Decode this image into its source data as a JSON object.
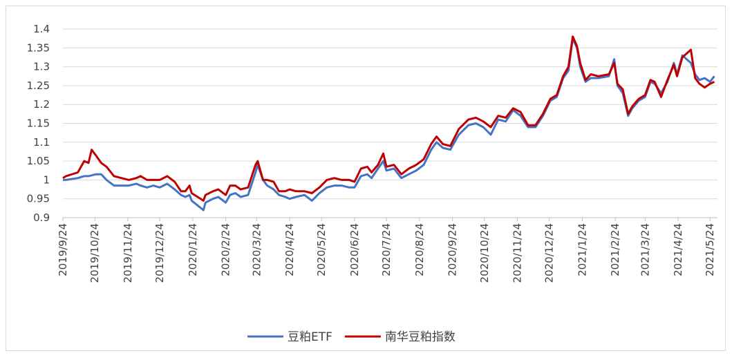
{
  "chart_data": {
    "type": "line",
    "x": [
      "2019/9/24",
      "2019/9/27",
      "2019/10/8",
      "2019/10/14",
      "2019/10/18",
      "2019/10/21",
      "2019/10/25",
      "2019/10/30",
      "2019/11/4",
      "2019/11/11",
      "2019/11/18",
      "2019/11/25",
      "2019/12/2",
      "2019/12/6",
      "2019/12/12",
      "2019/12/18",
      "2019/12/24",
      "2019/12/31",
      "2020/1/7",
      "2020/1/13",
      "2020/1/17",
      "2020/1/21",
      "2020/1/23",
      "2020/2/3",
      "2020/2/5",
      "2020/2/12",
      "2020/2/17",
      "2020/2/24",
      "2020/2/28",
      "2020/3/4",
      "2020/3/9",
      "2020/3/16",
      "2020/3/23",
      "2020/3/25",
      "2020/3/30",
      "2020/4/3",
      "2020/4/9",
      "2020/4/14",
      "2020/4/20",
      "2020/4/24",
      "2020/4/30",
      "2020/5/8",
      "2020/5/15",
      "2020/5/22",
      "2020/5/29",
      "2020/6/5",
      "2020/6/12",
      "2020/6/19",
      "2020/6/24",
      "2020/6/30",
      "2020/7/6",
      "2020/7/10",
      "2020/7/16",
      "2020/7/21",
      "2020/7/24",
      "2020/7/31",
      "2020/8/7",
      "2020/8/14",
      "2020/8/21",
      "2020/8/28",
      "2020/9/4",
      "2020/9/9",
      "2020/9/15",
      "2020/9/22",
      "2020/9/30",
      "2020/10/9",
      "2020/10/16",
      "2020/10/23",
      "2020/10/30",
      "2020/11/6",
      "2020/11/13",
      "2020/11/20",
      "2020/11/27",
      "2020/12/4",
      "2020/12/11",
      "2020/12/18",
      "2020/12/25",
      "2020/12/31",
      "2021/1/6",
      "2021/1/11",
      "2021/1/15",
      "2021/1/19",
      "2021/1/22",
      "2021/1/27",
      "2021/2/1",
      "2021/2/8",
      "2021/2/18",
      "2021/2/23",
      "2021/2/26",
      "2021/3/3",
      "2021/3/8",
      "2021/3/12",
      "2021/3/18",
      "2021/3/24",
      "2021/3/29",
      "2021/4/2",
      "2021/4/8",
      "2021/4/14",
      "2021/4/20",
      "2021/4/23",
      "2021/4/28",
      "2021/5/6",
      "2021/5/10",
      "2021/5/14",
      "2021/5/19",
      "2021/5/24",
      "2021/5/28"
    ],
    "series": [
      {
        "name": "豆粕ETF",
        "color": "#4472c4",
        "values": [
          1.0,
          1.0,
          1.005,
          1.01,
          1.01,
          1.012,
          1.015,
          1.015,
          1.0,
          0.985,
          0.985,
          0.985,
          0.99,
          0.985,
          0.98,
          0.985,
          0.98,
          0.99,
          0.975,
          0.96,
          0.955,
          0.96,
          0.945,
          0.92,
          0.94,
          0.95,
          0.955,
          0.94,
          0.96,
          0.965,
          0.955,
          0.96,
          1.02,
          1.04,
          1.0,
          0.985,
          0.975,
          0.96,
          0.955,
          0.95,
          0.955,
          0.96,
          0.945,
          0.965,
          0.98,
          0.985,
          0.985,
          0.98,
          0.98,
          1.01,
          1.015,
          1.005,
          1.03,
          1.05,
          1.025,
          1.03,
          1.005,
          1.015,
          1.025,
          1.04,
          1.08,
          1.1,
          1.085,
          1.08,
          1.12,
          1.145,
          1.15,
          1.14,
          1.12,
          1.16,
          1.155,
          1.185,
          1.17,
          1.14,
          1.14,
          1.17,
          1.21,
          1.22,
          1.27,
          1.29,
          1.375,
          1.35,
          1.3,
          1.26,
          1.27,
          1.27,
          1.275,
          1.32,
          1.25,
          1.23,
          1.17,
          1.19,
          1.21,
          1.22,
          1.26,
          1.255,
          1.23,
          1.26,
          1.31,
          1.28,
          1.33,
          1.31,
          1.28,
          1.265,
          1.27,
          1.26,
          1.275
        ]
      },
      {
        "name": "南华豆粕指数",
        "color": "#c00000",
        "values": [
          1.005,
          1.01,
          1.02,
          1.05,
          1.045,
          1.08,
          1.065,
          1.045,
          1.035,
          1.01,
          1.005,
          1.0,
          1.005,
          1.01,
          1.0,
          1.0,
          1.0,
          1.01,
          0.995,
          0.97,
          0.97,
          0.985,
          0.965,
          0.945,
          0.96,
          0.97,
          0.975,
          0.96,
          0.985,
          0.985,
          0.975,
          0.98,
          1.04,
          1.05,
          1.0,
          1.0,
          0.995,
          0.97,
          0.97,
          0.975,
          0.97,
          0.97,
          0.965,
          0.98,
          1.0,
          1.005,
          1.0,
          1.0,
          0.995,
          1.03,
          1.035,
          1.02,
          1.04,
          1.07,
          1.035,
          1.04,
          1.015,
          1.03,
          1.04,
          1.055,
          1.095,
          1.115,
          1.095,
          1.09,
          1.135,
          1.16,
          1.165,
          1.155,
          1.14,
          1.17,
          1.165,
          1.19,
          1.18,
          1.145,
          1.145,
          1.175,
          1.215,
          1.225,
          1.275,
          1.3,
          1.38,
          1.355,
          1.31,
          1.265,
          1.28,
          1.275,
          1.28,
          1.31,
          1.255,
          1.24,
          1.175,
          1.195,
          1.215,
          1.225,
          1.265,
          1.26,
          1.22,
          1.265,
          1.305,
          1.275,
          1.325,
          1.345,
          1.27,
          1.255,
          1.245,
          1.255,
          1.26
        ]
      }
    ],
    "xlim": [
      "2019/9/24",
      "2021/5/31"
    ],
    "xticks": [
      "2019/9/24",
      "2019/10/24",
      "2019/11/24",
      "2019/12/24",
      "2020/1/24",
      "2020/2/24",
      "2020/3/24",
      "2020/4/24",
      "2020/5/24",
      "2020/6/24",
      "2020/7/24",
      "2020/8/24",
      "2020/9/24",
      "2020/10/24",
      "2020/11/24",
      "2020/12/24",
      "2021/1/24",
      "2021/2/24",
      "2021/3/24",
      "2021/4/24",
      "2021/5/24"
    ],
    "ylim": [
      0.9,
      1.4
    ],
    "yticks": [
      0.9,
      0.95,
      1,
      1.05,
      1.1,
      1.15,
      1.2,
      1.25,
      1.3,
      1.35,
      1.4
    ],
    "grid": true
  }
}
